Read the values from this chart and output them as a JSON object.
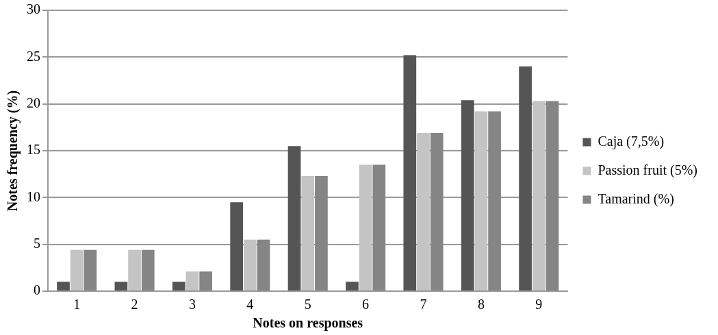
{
  "chart_data": {
    "type": "bar",
    "xlabel": "Notes on responses",
    "ylabel": "Notes frequency (%)",
    "categories": [
      "1",
      "2",
      "3",
      "4",
      "5",
      "6",
      "7",
      "8",
      "9"
    ],
    "series": [
      {
        "name": "Caja (7,5%)",
        "color": "#555555",
        "values": [
          1,
          1,
          1,
          9.5,
          15.5,
          1,
          25.2,
          20.4,
          24
        ]
      },
      {
        "name": "Passion fruit (5%)",
        "color": "#c4c4c4",
        "values": [
          4.4,
          4.4,
          2.1,
          5.5,
          12.3,
          13.5,
          16.9,
          19.2,
          20.3
        ]
      },
      {
        "name": "Tamarind (%)",
        "color": "#858585",
        "values": [
          4.4,
          4.4,
          2.1,
          5.5,
          12.3,
          13.5,
          16.9,
          19.2,
          20.3
        ]
      }
    ],
    "ylim": [
      0,
      30
    ],
    "yticks": [
      0,
      5,
      10,
      15,
      20,
      25,
      30
    ],
    "grid": "y",
    "legend": "right"
  }
}
